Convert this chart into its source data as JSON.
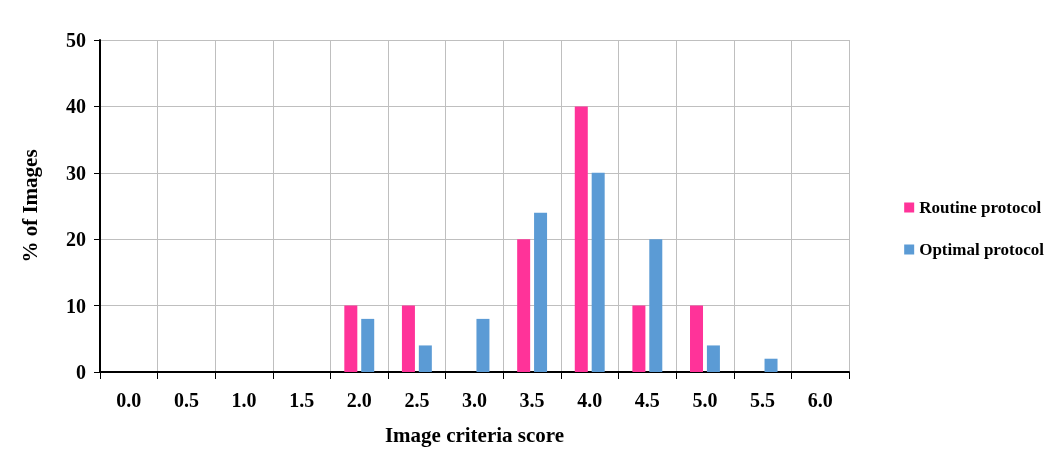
{
  "chart_data": {
    "type": "bar",
    "xlabel": "Image criteria score",
    "ylabel": "% of Images",
    "categories": [
      "0.0",
      "0.5",
      "1.0",
      "1.5",
      "2.0",
      "2.5",
      "3.0",
      "3.5",
      "4.0",
      "4.5",
      "5.0",
      "5.5",
      "6.0"
    ],
    "series": [
      {
        "name": "Routine protocol",
        "color": "#ff3399",
        "values": [
          null,
          null,
          null,
          null,
          10,
          10,
          null,
          20,
          40,
          10,
          10,
          null,
          null
        ]
      },
      {
        "name": "Optimal protocol",
        "color": "#5b9bd5",
        "values": [
          null,
          null,
          null,
          null,
          8,
          4,
          8,
          24,
          30,
          20,
          4,
          2,
          null
        ]
      }
    ],
    "ylim": [
      0,
      50
    ],
    "yticks": [
      0,
      10,
      20,
      30,
      40,
      50
    ],
    "grid": true,
    "legend": "right"
  }
}
